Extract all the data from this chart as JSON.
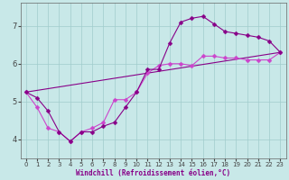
{
  "title": "",
  "xlabel": "Windchill (Refroidissement éolien,°C)",
  "ylabel": "",
  "xlim": [
    -0.5,
    23.5
  ],
  "ylim": [
    3.5,
    7.6
  ],
  "yticks": [
    4,
    5,
    6,
    7
  ],
  "xticks": [
    0,
    1,
    2,
    3,
    4,
    5,
    6,
    7,
    8,
    9,
    10,
    11,
    12,
    13,
    14,
    15,
    16,
    17,
    18,
    19,
    20,
    21,
    22,
    23
  ],
  "background_color": "#c8e8e8",
  "grid_color": "#a0cccc",
  "line_color": "#880088",
  "line_color2": "#cc44cc",
  "line1_x": [
    0,
    1,
    2,
    3,
    4,
    5,
    6,
    7,
    8,
    9,
    10,
    11,
    12,
    13,
    14,
    15,
    16,
    17,
    18,
    19,
    20,
    21,
    22,
    23
  ],
  "line1_y": [
    5.25,
    5.1,
    4.75,
    4.2,
    3.95,
    4.2,
    4.2,
    4.35,
    4.45,
    4.85,
    5.25,
    5.85,
    5.85,
    6.55,
    7.1,
    7.2,
    7.25,
    7.05,
    6.85,
    6.8,
    6.75,
    6.7,
    6.6,
    6.3
  ],
  "line2_x": [
    0,
    1,
    2,
    3,
    4,
    5,
    6,
    7,
    8,
    9,
    10,
    11,
    12,
    13,
    14,
    15,
    16,
    17,
    18,
    19,
    20,
    21,
    22,
    23
  ],
  "line2_y": [
    5.25,
    4.85,
    4.3,
    4.2,
    3.95,
    4.2,
    4.3,
    4.45,
    5.05,
    5.05,
    5.25,
    5.75,
    5.95,
    6.0,
    6.0,
    5.95,
    6.2,
    6.2,
    6.15,
    6.15,
    6.1,
    6.1,
    6.1,
    6.3
  ],
  "line3_x": [
    0,
    23
  ],
  "line3_y": [
    5.25,
    6.3
  ],
  "marker": "D",
  "marker_size": 2.5,
  "linewidth": 0.8,
  "tick_fontsize": 5,
  "xlabel_fontsize": 5.5
}
